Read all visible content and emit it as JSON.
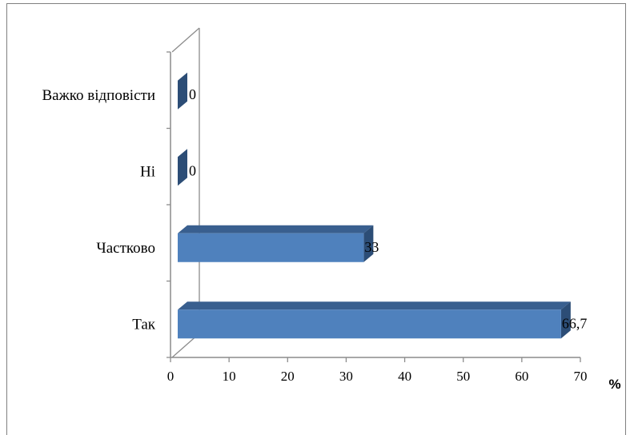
{
  "chart_data": {
    "type": "bar",
    "orientation": "horizontal",
    "three_d": true,
    "categories": [
      "Так",
      "Частково",
      "Ні",
      "Важко відповісти"
    ],
    "values": [
      66.7,
      33,
      0,
      0
    ],
    "value_labels": [
      "66,7",
      "33",
      "0",
      "0"
    ],
    "xlim": [
      0,
      70
    ],
    "x_ticks": [
      0,
      10,
      20,
      30,
      40,
      50,
      60,
      70
    ],
    "x_unit": "%",
    "grid": false,
    "legend": "none",
    "colors": {
      "bar_front": "#4f81bd",
      "bar_top": "#395f8f",
      "bar_side": "#2c4d76",
      "axis": "#8c8c8c"
    }
  }
}
